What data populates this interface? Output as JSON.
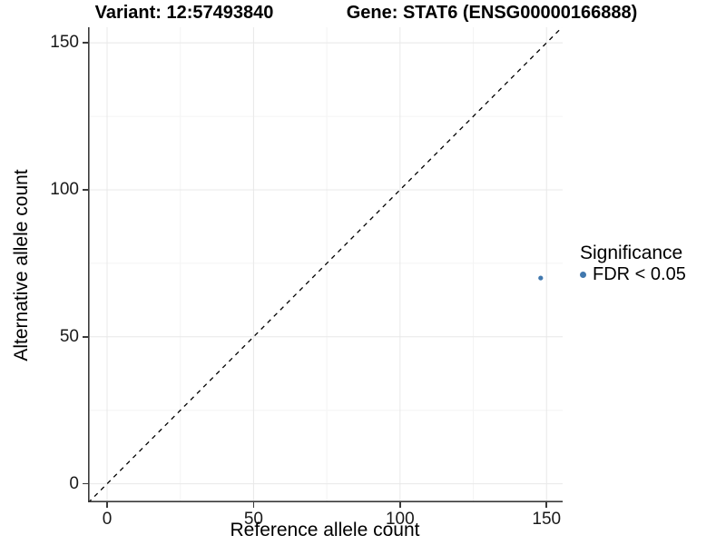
{
  "chart_data": {
    "type": "scatter",
    "title_left": "Variant: 12:57493840",
    "title_right": "Gene: STAT6 (ENSG00000166888)",
    "xlabel": "Reference allele count",
    "ylabel": "Alternative allele count",
    "xlim": [
      -6.5,
      155.5
    ],
    "ylim": [
      -6.3,
      155.3
    ],
    "x_ticks": [
      0,
      50,
      100,
      150
    ],
    "y_ticks": [
      0,
      50,
      100,
      150
    ],
    "x_minor_ticks": [
      25,
      75,
      125
    ],
    "y_minor_ticks": [
      25,
      75,
      125
    ],
    "grid": "major-and-minor",
    "points": [
      {
        "x": 148,
        "y": 70,
        "series": "FDR < 0.05",
        "color": "#4178ae",
        "radius": 2.6
      }
    ],
    "reference_line": {
      "type": "identity",
      "style": "dashed",
      "color": "#000000",
      "from": [
        -6.5,
        -6.5
      ],
      "to": [
        155.5,
        155.5
      ]
    },
    "legend": {
      "title": "Significance",
      "position": "right",
      "entries": [
        {
          "label": "FDR < 0.05",
          "color": "#4178ae"
        }
      ]
    },
    "colors": {
      "background": "#ffffff",
      "grid_major": "#e8e8e8",
      "grid_minor": "#f4f4f4",
      "axis_line": "#3a3a3a",
      "tick_text": "#1a1a1a"
    }
  }
}
